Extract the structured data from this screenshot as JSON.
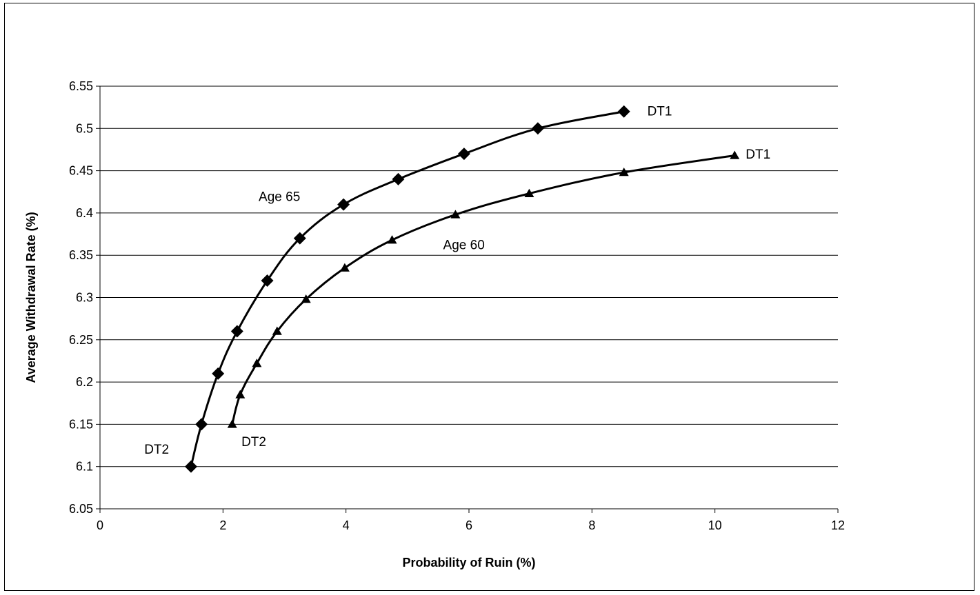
{
  "chart_data": {
    "type": "line",
    "title": "",
    "xlabel": "Probability of Ruin (%)",
    "ylabel": "Average Withdrawal Rate (%)",
    "xlim": [
      0,
      12
    ],
    "ylim": [
      6.05,
      6.55
    ],
    "x_ticks": [
      "0",
      "2",
      "4",
      "6",
      "8",
      "10",
      "12"
    ],
    "y_ticks": [
      "6.05",
      "6.1",
      "6.15",
      "6.2",
      "6.25",
      "6.3",
      "6.35",
      "6.4",
      "6.45",
      "6.5",
      "6.55"
    ],
    "grid": "horizontal",
    "legend": "none",
    "series": [
      {
        "marker": "diamond",
        "x": [
          1.48,
          1.65,
          1.92,
          2.23,
          2.72,
          3.25,
          3.96,
          4.85,
          5.92,
          7.12,
          8.52
        ],
        "y": [
          6.1,
          6.15,
          6.21,
          6.26,
          6.32,
          6.37,
          6.41,
          6.44,
          6.47,
          6.5,
          6.52
        ]
      },
      {
        "marker": "triangle",
        "x": [
          2.15,
          2.28,
          2.55,
          2.88,
          3.35,
          3.98,
          4.75,
          5.78,
          6.98,
          8.52,
          10.32
        ],
        "y": [
          6.15,
          6.185,
          6.222,
          6.26,
          6.298,
          6.335,
          6.368,
          6.398,
          6.423,
          6.448,
          6.468
        ]
      }
    ],
    "annotations": [
      {
        "text": "DT1",
        "x": 8.9,
        "y": 6.521
      },
      {
        "text": "DT1",
        "x": 10.5,
        "y": 6.47
      },
      {
        "text": "Age 65",
        "x": 2.58,
        "y": 6.42
      },
      {
        "text": "Age 60",
        "x": 5.58,
        "y": 6.363
      },
      {
        "text": "DT2",
        "x": 0.72,
        "y": 6.121
      },
      {
        "text": "DT2",
        "x": 2.3,
        "y": 6.13
      }
    ]
  }
}
